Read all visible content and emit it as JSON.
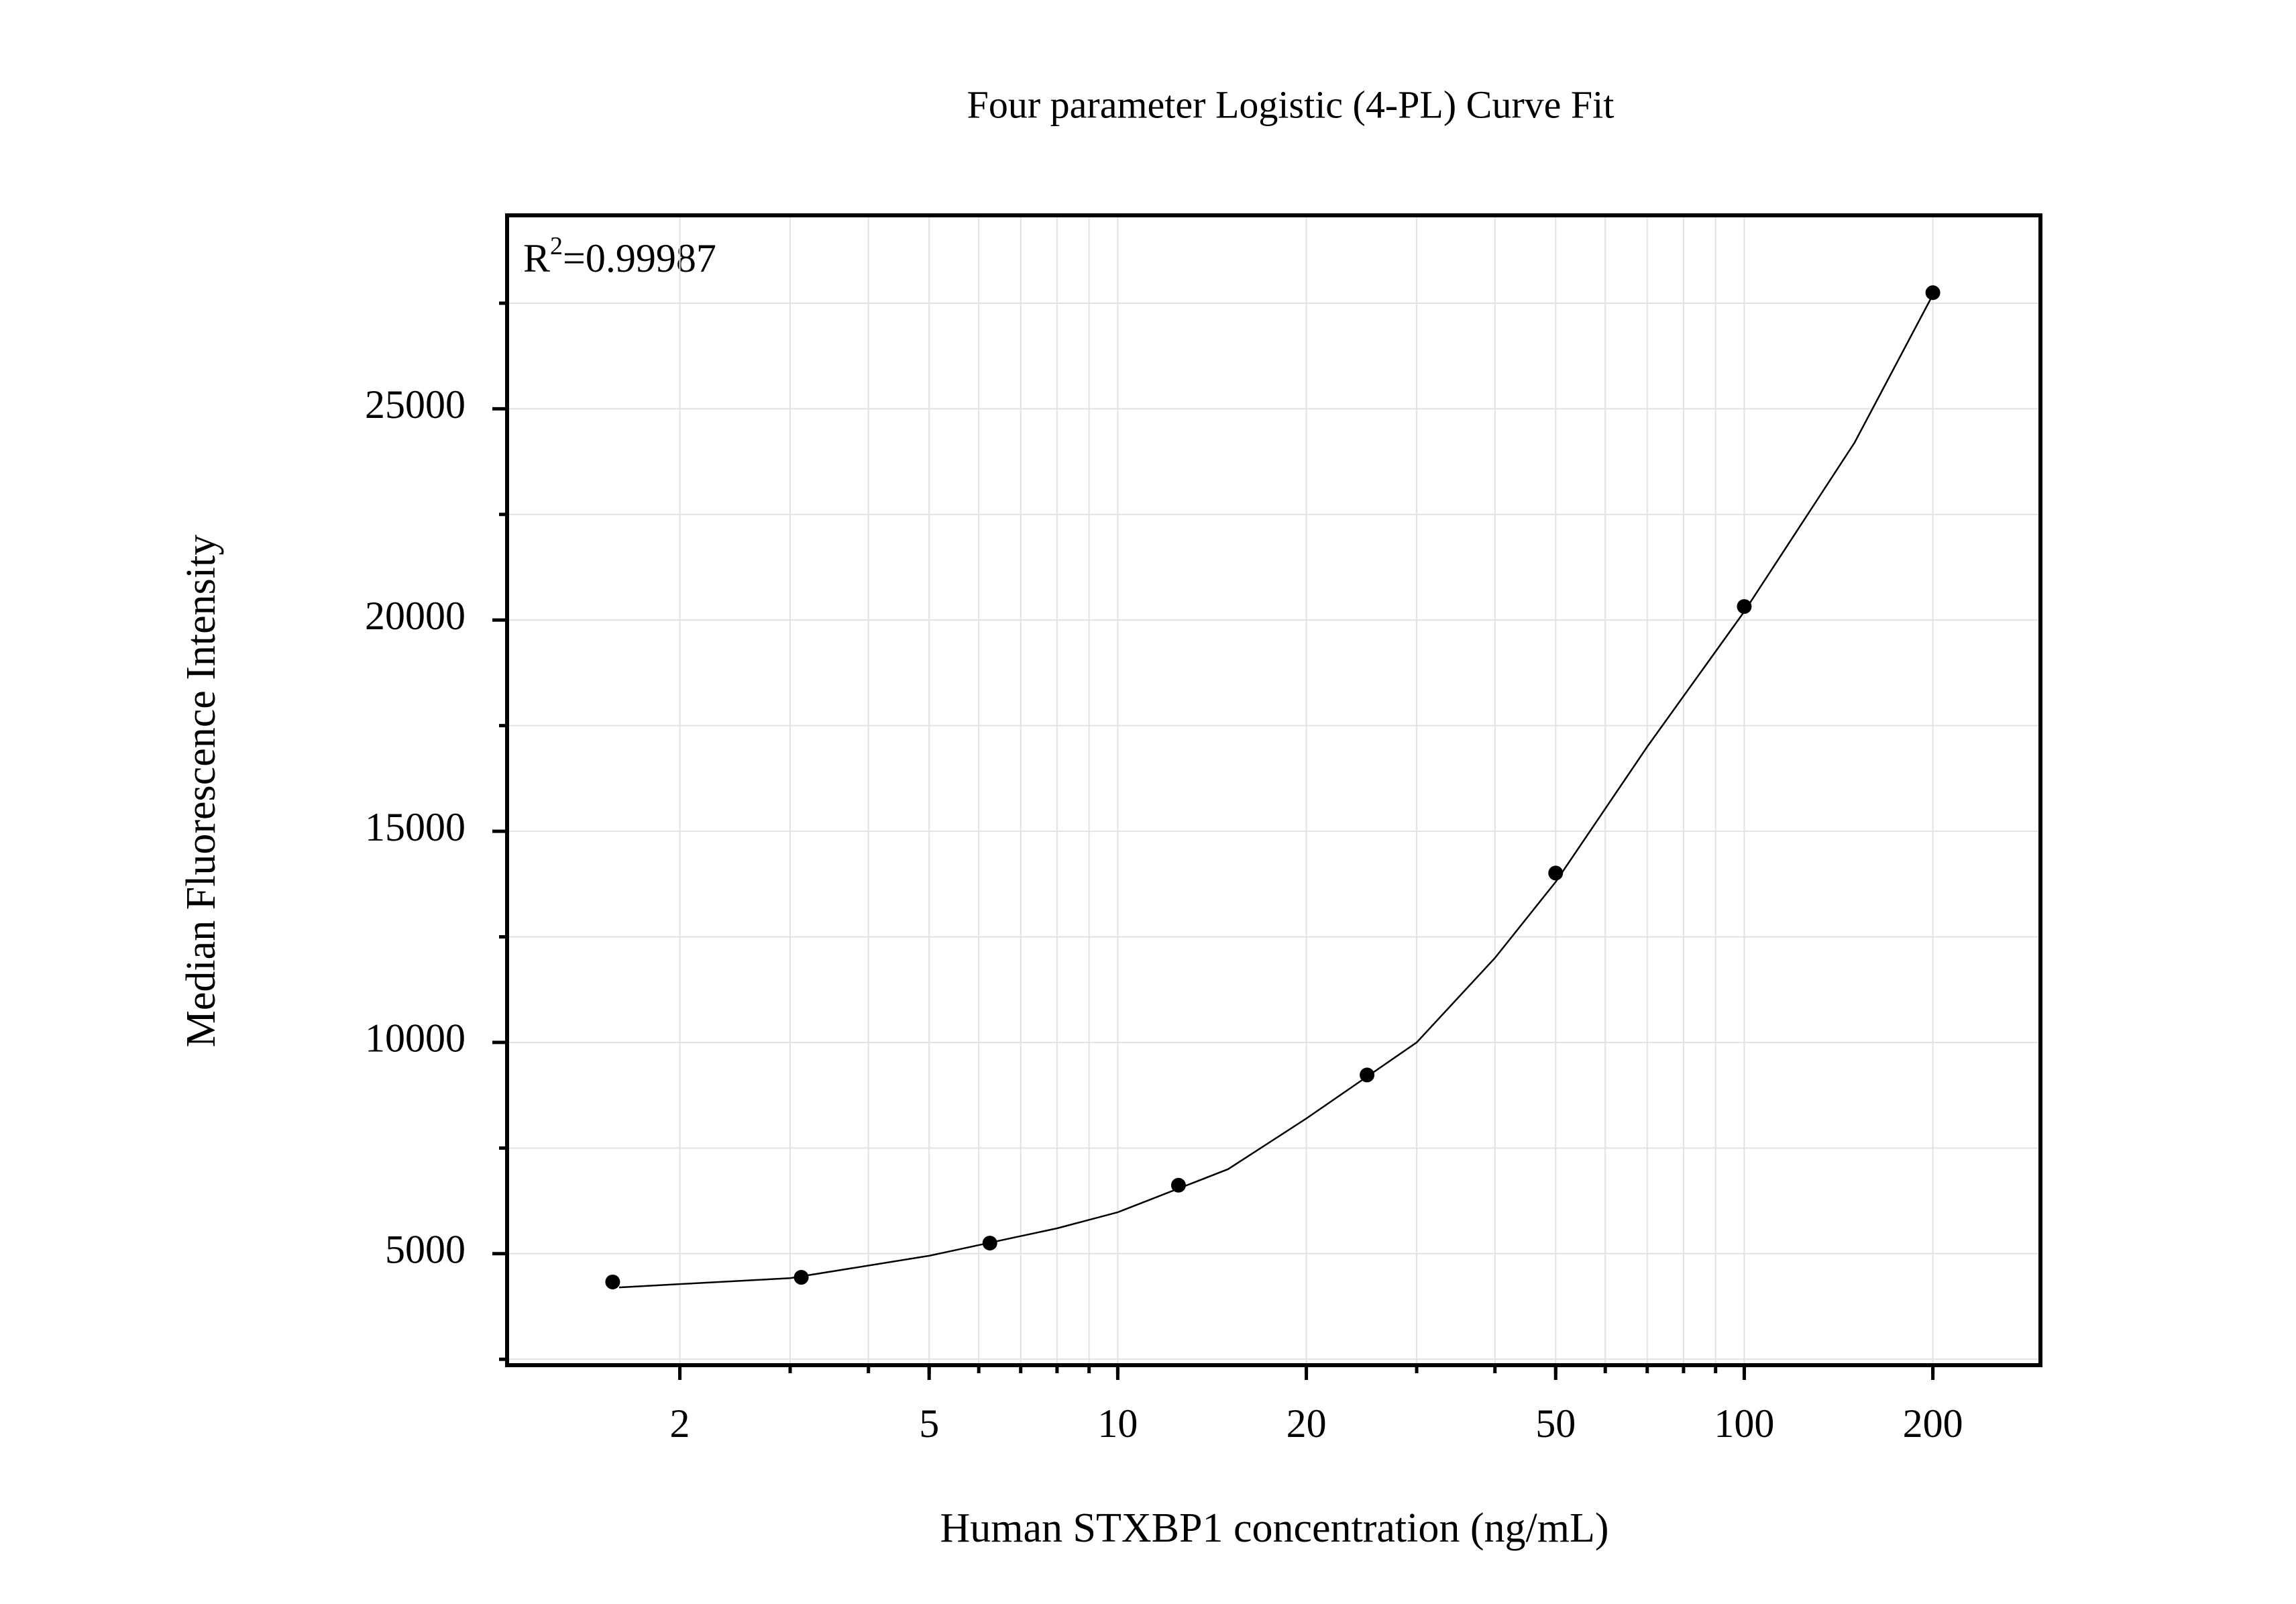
{
  "chart_data": {
    "type": "scatter",
    "title": "Four parameter Logistic (4-PL) Curve Fit",
    "x_label": "Human STXBP1 concentration (ng/mL)",
    "y_label": "Median Fluorescence Intensity",
    "annotation": {
      "text": "R",
      "sup": "2",
      "rest": "=0.99987"
    },
    "log_x": true,
    "grid": true,
    "xlim": [
      1.06,
      297
    ],
    "ylim": [
      2360,
      29580
    ],
    "xticks": [
      2,
      5,
      10,
      20,
      50,
      100,
      200
    ],
    "xgrid": [
      2,
      3,
      4,
      5,
      6,
      7,
      8,
      9,
      10,
      20,
      30,
      40,
      50,
      60,
      70,
      80,
      90,
      100,
      200
    ],
    "yticks": [
      5000,
      10000,
      15000,
      20000,
      25000
    ],
    "yminor": [
      2500,
      7500,
      12500,
      17500,
      22500,
      27500
    ],
    "series": [
      {
        "color": "#000000",
        "x": [
          1.5625,
          3.125,
          6.25,
          12.5,
          25,
          50,
          100,
          200
        ],
        "values": [
          4330,
          4440,
          5250,
          6620,
          9230,
          14010,
          20320,
          27750
        ]
      }
    ],
    "curve": {
      "color": "#000000",
      "x": [
        1.6,
        2,
        3,
        5,
        8,
        10,
        15,
        20,
        30,
        40,
        50,
        70,
        100,
        150,
        200
      ],
      "values": [
        4200,
        4280,
        4420,
        4950,
        5600,
        5980,
        7000,
        8200,
        10000,
        12000,
        13800,
        17000,
        20200,
        24200,
        27700
      ]
    }
  }
}
